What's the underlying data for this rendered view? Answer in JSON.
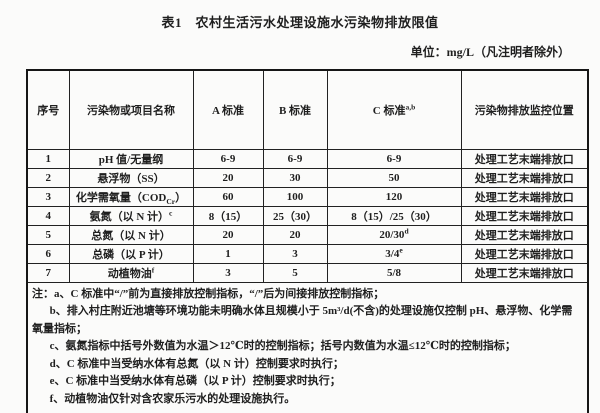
{
  "title": "表1　农村生活污水处理设施水污染物排放限值",
  "unit": "单位：mg/L（凡注明者除外）",
  "table": {
    "columns": [
      [
        {
          "t": "序号"
        }
      ],
      [
        {
          "t": "污染物或项目名称"
        }
      ],
      [
        {
          "t": "A 标准"
        }
      ],
      [
        {
          "t": "B 标准"
        }
      ],
      [
        {
          "t": "C 标准"
        },
        {
          "t": "a,b",
          "sup": true
        }
      ],
      [
        {
          "t": "污染物排放监控位置"
        }
      ]
    ],
    "rows": [
      {
        "cells": [
          [
            {
              "t": "1"
            }
          ],
          [
            {
              "t": "pH 值/无量纲"
            }
          ],
          [
            {
              "t": "6-9"
            }
          ],
          [
            {
              "t": "6-9"
            }
          ],
          [
            {
              "t": "6-9"
            }
          ],
          [
            {
              "t": "处理工艺末端排放口"
            }
          ]
        ]
      },
      {
        "cells": [
          [
            {
              "t": "2"
            }
          ],
          [
            {
              "t": "悬浮物（SS）"
            }
          ],
          [
            {
              "t": "20"
            }
          ],
          [
            {
              "t": "30"
            }
          ],
          [
            {
              "t": "50"
            }
          ],
          [
            {
              "t": "处理工艺末端排放口"
            }
          ]
        ]
      },
      {
        "cells": [
          [
            {
              "t": "3"
            }
          ],
          [
            {
              "t": "化学需氧量（COD"
            },
            {
              "t": "Cr",
              "sub": true
            },
            {
              "t": "）"
            }
          ],
          [
            {
              "t": "60"
            }
          ],
          [
            {
              "t": "100"
            }
          ],
          [
            {
              "t": "120"
            }
          ],
          [
            {
              "t": "处理工艺末端排放口"
            }
          ]
        ]
      },
      {
        "cells": [
          [
            {
              "t": "4"
            }
          ],
          [
            {
              "t": "氨氮（以 N 计）"
            },
            {
              "t": "c",
              "sup": true
            }
          ],
          [
            {
              "t": "8（15）"
            }
          ],
          [
            {
              "t": "25（30）"
            }
          ],
          [
            {
              "t": "8（15）/25（30）"
            }
          ],
          [
            {
              "t": "处理工艺末端排放口"
            }
          ]
        ]
      },
      {
        "cells": [
          [
            {
              "t": "5"
            }
          ],
          [
            {
              "t": "总氮（以 N 计）"
            }
          ],
          [
            {
              "t": "20"
            }
          ],
          [
            {
              "t": "20"
            }
          ],
          [
            {
              "t": "20/30"
            },
            {
              "t": "d",
              "sup": true
            }
          ],
          [
            {
              "t": "处理工艺末端排放口"
            }
          ]
        ]
      },
      {
        "cells": [
          [
            {
              "t": "6"
            }
          ],
          [
            {
              "t": "总磷（以 P 计）"
            }
          ],
          [
            {
              "t": "1"
            }
          ],
          [
            {
              "t": "3"
            }
          ],
          [
            {
              "t": "3/4"
            },
            {
              "t": "e",
              "sup": true
            }
          ],
          [
            {
              "t": "处理工艺末端排放口"
            }
          ]
        ]
      },
      {
        "cells": [
          [
            {
              "t": "7"
            }
          ],
          [
            {
              "t": "动植物油"
            },
            {
              "t": "f",
              "sup": true
            }
          ],
          [
            {
              "t": "3"
            }
          ],
          [
            {
              "t": "5"
            }
          ],
          [
            {
              "t": "5/8"
            }
          ],
          [
            {
              "t": "处理工艺末端排放口"
            }
          ]
        ]
      }
    ]
  },
  "notes": [
    {
      "text": "注：a、C 标准中“/”前为直接排放控制指标，“/”后为间接排放控制指标；",
      "indent": false
    },
    {
      "text": "b、排入村庄附近池塘等环境功能未明确水体且规模小于 5m³/d(不含)的处理设施仅控制 pH、悬浮物、化学需氧量指标；",
      "indent": true
    },
    {
      "text": "c、氨氮指标中括号外数值为水温＞12℃时的控制指标；括号内数值为水温≤12℃时的控制指标；",
      "indent": true
    },
    {
      "text": "d、C 标准中当受纳水体有总氮（以 N 计）控制要求时执行；",
      "indent": true
    },
    {
      "text": "e、C 标准中当受纳水体有总磷（以 P 计）控制要求时执行；",
      "indent": true
    },
    {
      "text": "f、动植物油仅针对含农家乐污水的处理设施执行。",
      "indent": true
    }
  ],
  "colors": {
    "border": "#161616",
    "text": "#1f1f1f",
    "background": "#fbfbfa"
  }
}
